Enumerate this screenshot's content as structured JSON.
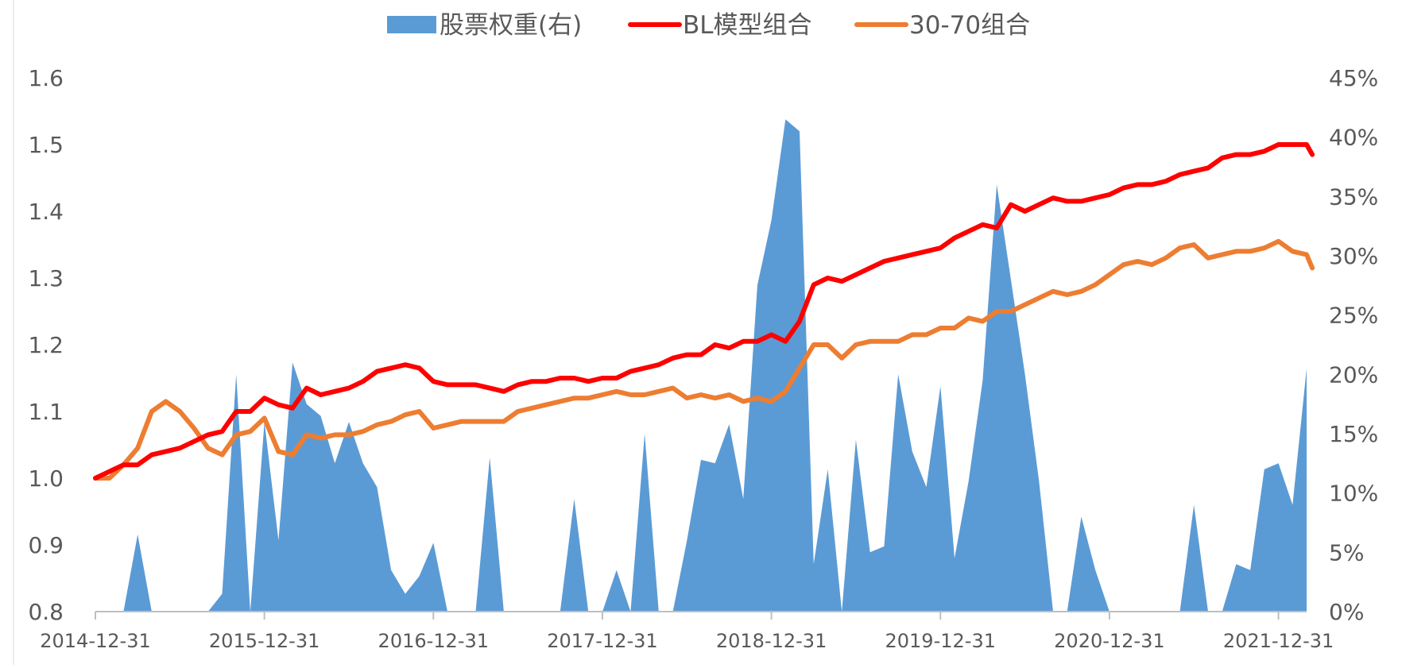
{
  "chart_data": {
    "type": "line",
    "legend_position": "top",
    "grid": false,
    "colors": {
      "stock_weight": "#5B9BD5",
      "bl": "#FF0000",
      "p3070": "#ED7D31",
      "axis": "#BFBFBF",
      "text": "#595959"
    },
    "series": [
      {
        "key": "stock_weight",
        "name": "股票权重(右)",
        "type": "area",
        "axis": "right"
      },
      {
        "key": "bl",
        "name": "BL模型组合",
        "type": "line",
        "axis": "left"
      },
      {
        "key": "p3070",
        "name": "30-70组合",
        "type": "line",
        "axis": "left"
      }
    ],
    "x_tick_labels": [
      "2014-12-31",
      "2015-12-31",
      "2016-12-31",
      "2017-12-31",
      "2018-12-31",
      "2019-12-31",
      "2020-12-31",
      "2021-12-31"
    ],
    "x_range": [
      0,
      86
    ],
    "y_left_ticks": [
      "1.6",
      "1.5",
      "1.4",
      "1.3",
      "1.2",
      "1.1",
      "1.0",
      "0.9",
      "0.8"
    ],
    "y_left_range": [
      0.8,
      1.6
    ],
    "y_right_ticks": [
      "45%",
      "40%",
      "35%",
      "30%",
      "25%",
      "20%",
      "15%",
      "10%",
      "5%",
      "0%"
    ],
    "y_right_range": [
      0,
      45
    ],
    "stock_weight_points": [
      [
        0,
        0
      ],
      [
        2,
        0
      ],
      [
        3,
        6.5
      ],
      [
        4,
        0
      ],
      [
        8,
        0
      ],
      [
        9,
        1.5
      ],
      [
        10,
        20
      ],
      [
        11,
        0
      ],
      [
        12,
        16
      ],
      [
        13,
        6
      ],
      [
        14,
        21
      ],
      [
        15,
        17.5
      ],
      [
        16,
        16.5
      ],
      [
        17,
        12.5
      ],
      [
        18,
        16
      ],
      [
        19,
        12.5
      ],
      [
        20,
        10.5
      ],
      [
        21,
        3.5
      ],
      [
        22,
        1.5
      ],
      [
        23,
        3
      ],
      [
        24,
        5.8
      ],
      [
        25,
        0
      ],
      [
        27,
        0
      ],
      [
        28,
        13
      ],
      [
        29,
        0
      ],
      [
        33,
        0
      ],
      [
        34,
        9.5
      ],
      [
        35,
        0
      ],
      [
        36,
        0
      ],
      [
        37,
        3.5
      ],
      [
        38,
        0
      ],
      [
        39,
        15
      ],
      [
        40,
        0
      ],
      [
        41,
        0
      ],
      [
        42,
        6
      ],
      [
        43,
        12.8
      ],
      [
        44,
        12.5
      ],
      [
        45,
        15.8
      ],
      [
        46,
        9.5
      ],
      [
        47,
        27.5
      ],
      [
        48,
        33
      ],
      [
        49,
        41.5
      ],
      [
        50,
        40.5
      ],
      [
        51,
        4
      ],
      [
        52,
        12
      ],
      [
        53,
        0
      ],
      [
        54,
        14.5
      ],
      [
        55,
        5
      ],
      [
        56,
        5.5
      ],
      [
        57,
        20
      ],
      [
        58,
        13.5
      ],
      [
        59,
        10.5
      ],
      [
        60,
        19
      ],
      [
        61,
        4.5
      ],
      [
        62,
        11
      ],
      [
        63,
        19.5
      ],
      [
        64,
        36
      ],
      [
        65,
        28
      ],
      [
        66,
        20
      ],
      [
        67,
        11
      ],
      [
        68,
        0
      ],
      [
        69,
        0
      ],
      [
        70,
        8
      ],
      [
        71,
        3.5
      ],
      [
        72,
        0
      ],
      [
        77,
        0
      ],
      [
        78,
        9
      ],
      [
        79,
        0
      ],
      [
        80,
        0
      ],
      [
        81,
        4
      ],
      [
        82,
        3.5
      ],
      [
        83,
        12
      ],
      [
        84,
        12.5
      ],
      [
        85,
        9
      ],
      [
        86,
        20.5
      ],
      [
        86,
        0
      ]
    ],
    "bl_points": [
      [
        0,
        1.0
      ],
      [
        1,
        1.01
      ],
      [
        2,
        1.02
      ],
      [
        3,
        1.02
      ],
      [
        4,
        1.035
      ],
      [
        5,
        1.04
      ],
      [
        6,
        1.045
      ],
      [
        7,
        1.055
      ],
      [
        8,
        1.065
      ],
      [
        9,
        1.07
      ],
      [
        10,
        1.1
      ],
      [
        11,
        1.1
      ],
      [
        12,
        1.12
      ],
      [
        13,
        1.11
      ],
      [
        14,
        1.105
      ],
      [
        15,
        1.135
      ],
      [
        16,
        1.125
      ],
      [
        17,
        1.13
      ],
      [
        18,
        1.135
      ],
      [
        19,
        1.145
      ],
      [
        20,
        1.16
      ],
      [
        21,
        1.165
      ],
      [
        22,
        1.17
      ],
      [
        23,
        1.165
      ],
      [
        24,
        1.145
      ],
      [
        25,
        1.14
      ],
      [
        26,
        1.14
      ],
      [
        27,
        1.14
      ],
      [
        28,
        1.135
      ],
      [
        29,
        1.13
      ],
      [
        30,
        1.14
      ],
      [
        31,
        1.145
      ],
      [
        32,
        1.145
      ],
      [
        33,
        1.15
      ],
      [
        34,
        1.15
      ],
      [
        35,
        1.145
      ],
      [
        36,
        1.15
      ],
      [
        37,
        1.15
      ],
      [
        38,
        1.16
      ],
      [
        39,
        1.165
      ],
      [
        40,
        1.17
      ],
      [
        41,
        1.18
      ],
      [
        42,
        1.185
      ],
      [
        43,
        1.185
      ],
      [
        44,
        1.2
      ],
      [
        45,
        1.195
      ],
      [
        46,
        1.205
      ],
      [
        47,
        1.205
      ],
      [
        48,
        1.215
      ],
      [
        49,
        1.205
      ],
      [
        50,
        1.235
      ],
      [
        51,
        1.29
      ],
      [
        52,
        1.3
      ],
      [
        53,
        1.295
      ],
      [
        54,
        1.305
      ],
      [
        55,
        1.315
      ],
      [
        56,
        1.325
      ],
      [
        57,
        1.33
      ],
      [
        58,
        1.335
      ],
      [
        59,
        1.34
      ],
      [
        60,
        1.345
      ],
      [
        61,
        1.36
      ],
      [
        62,
        1.37
      ],
      [
        63,
        1.38
      ],
      [
        64,
        1.375
      ],
      [
        65,
        1.41
      ],
      [
        66,
        1.4
      ],
      [
        67,
        1.41
      ],
      [
        68,
        1.42
      ],
      [
        69,
        1.415
      ],
      [
        70,
        1.415
      ],
      [
        71,
        1.42
      ],
      [
        72,
        1.425
      ],
      [
        73,
        1.435
      ],
      [
        74,
        1.44
      ],
      [
        75,
        1.44
      ],
      [
        76,
        1.445
      ],
      [
        77,
        1.455
      ],
      [
        78,
        1.46
      ],
      [
        79,
        1.465
      ],
      [
        80,
        1.48
      ],
      [
        81,
        1.485
      ],
      [
        82,
        1.485
      ],
      [
        83,
        1.49
      ],
      [
        84,
        1.5
      ],
      [
        85,
        1.5
      ],
      [
        86,
        1.5
      ],
      [
        86.4,
        1.485
      ]
    ],
    "p3070_points": [
      [
        0,
        1.0
      ],
      [
        1,
        1.0
      ],
      [
        2,
        1.02
      ],
      [
        3,
        1.045
      ],
      [
        4,
        1.1
      ],
      [
        5,
        1.115
      ],
      [
        6,
        1.1
      ],
      [
        7,
        1.075
      ],
      [
        8,
        1.045
      ],
      [
        9,
        1.035
      ],
      [
        10,
        1.065
      ],
      [
        11,
        1.07
      ],
      [
        12,
        1.09
      ],
      [
        13,
        1.04
      ],
      [
        14,
        1.035
      ],
      [
        15,
        1.065
      ],
      [
        16,
        1.06
      ],
      [
        17,
        1.065
      ],
      [
        18,
        1.065
      ],
      [
        19,
        1.07
      ],
      [
        20,
        1.08
      ],
      [
        21,
        1.085
      ],
      [
        22,
        1.095
      ],
      [
        23,
        1.1
      ],
      [
        24,
        1.075
      ],
      [
        25,
        1.08
      ],
      [
        26,
        1.085
      ],
      [
        27,
        1.085
      ],
      [
        28,
        1.085
      ],
      [
        29,
        1.085
      ],
      [
        30,
        1.1
      ],
      [
        31,
        1.105
      ],
      [
        32,
        1.11
      ],
      [
        33,
        1.115
      ],
      [
        34,
        1.12
      ],
      [
        35,
        1.12
      ],
      [
        36,
        1.125
      ],
      [
        37,
        1.13
      ],
      [
        38,
        1.125
      ],
      [
        39,
        1.125
      ],
      [
        40,
        1.13
      ],
      [
        41,
        1.135
      ],
      [
        42,
        1.12
      ],
      [
        43,
        1.125
      ],
      [
        44,
        1.12
      ],
      [
        45,
        1.125
      ],
      [
        46,
        1.115
      ],
      [
        47,
        1.12
      ],
      [
        48,
        1.115
      ],
      [
        49,
        1.13
      ],
      [
        50,
        1.165
      ],
      [
        51,
        1.2
      ],
      [
        52,
        1.2
      ],
      [
        53,
        1.18
      ],
      [
        54,
        1.2
      ],
      [
        55,
        1.205
      ],
      [
        56,
        1.205
      ],
      [
        57,
        1.205
      ],
      [
        58,
        1.215
      ],
      [
        59,
        1.215
      ],
      [
        60,
        1.225
      ],
      [
        61,
        1.225
      ],
      [
        62,
        1.24
      ],
      [
        63,
        1.235
      ],
      [
        64,
        1.25
      ],
      [
        65,
        1.25
      ],
      [
        66,
        1.26
      ],
      [
        67,
        1.27
      ],
      [
        68,
        1.28
      ],
      [
        69,
        1.275
      ],
      [
        70,
        1.28
      ],
      [
        71,
        1.29
      ],
      [
        72,
        1.305
      ],
      [
        73,
        1.32
      ],
      [
        74,
        1.325
      ],
      [
        75,
        1.32
      ],
      [
        76,
        1.33
      ],
      [
        77,
        1.345
      ],
      [
        78,
        1.35
      ],
      [
        79,
        1.33
      ],
      [
        80,
        1.335
      ],
      [
        81,
        1.34
      ],
      [
        82,
        1.34
      ],
      [
        83,
        1.345
      ],
      [
        84,
        1.355
      ],
      [
        85,
        1.34
      ],
      [
        86,
        1.335
      ],
      [
        86.4,
        1.315
      ]
    ]
  }
}
